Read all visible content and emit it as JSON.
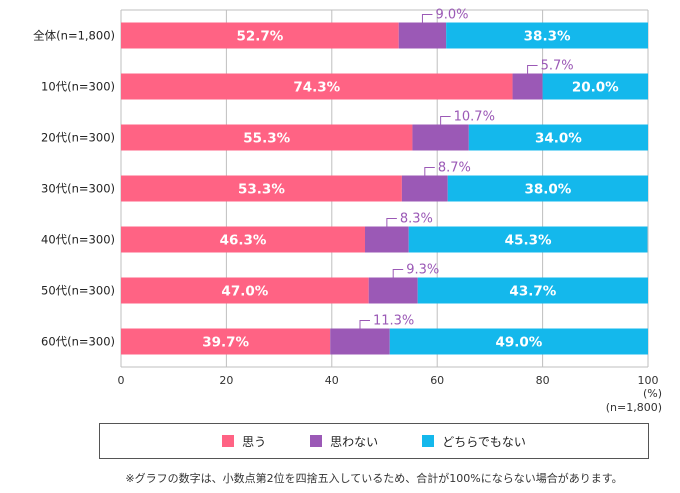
{
  "chart_data": {
    "type": "bar",
    "orientation": "horizontal",
    "stacked": true,
    "categories": [
      "全体(n=1,800)",
      "10代(n=300)",
      "20代(n=300)",
      "30代(n=300)",
      "40代(n=300)",
      "50代(n=300)",
      "60代(n=300)"
    ],
    "series": [
      {
        "name": "思う",
        "color": "#ff6384",
        "values": [
          52.7,
          74.3,
          55.3,
          53.3,
          46.3,
          47.0,
          39.7
        ]
      },
      {
        "name": "思わない",
        "color": "#9b59b6",
        "values": [
          9.0,
          5.7,
          10.7,
          8.7,
          8.3,
          9.3,
          11.3
        ]
      },
      {
        "name": "どちらでもない",
        "color": "#14b8ec",
        "values": [
          38.3,
          20.0,
          34.0,
          38.0,
          45.3,
          43.7,
          49.0
        ]
      }
    ],
    "xlim": [
      0,
      100
    ],
    "xticks": [
      0,
      20,
      40,
      60,
      80,
      100
    ],
    "unit_label": "(%)",
    "total_n_label": "(n=1,800)",
    "grid": "vertical",
    "legend_position": "bottom"
  },
  "footnote": "※グラフの数字は、小数点第2位を四捨五入しているため、合計が100%にならない場合があります。"
}
